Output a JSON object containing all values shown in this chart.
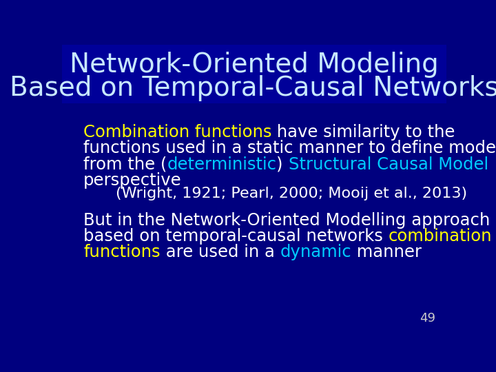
{
  "bg_color": "#00007F",
  "title_line1": "Network-Oriented Modeling",
  "title_line2": "Based on Temporal-Causal Networks",
  "title_color": "#C8E8FF",
  "title_fontsize": 28,
  "title_bg_color": "#00007F",
  "page_number": "49",
  "page_number_color": "#CCCCCC",
  "body_fontsize": 17.5,
  "citation_fontsize": 16,
  "yellow": "#FFFF00",
  "cyan": "#00CCFF",
  "white": "#FFFFFF",
  "bg_dark": "#000099"
}
